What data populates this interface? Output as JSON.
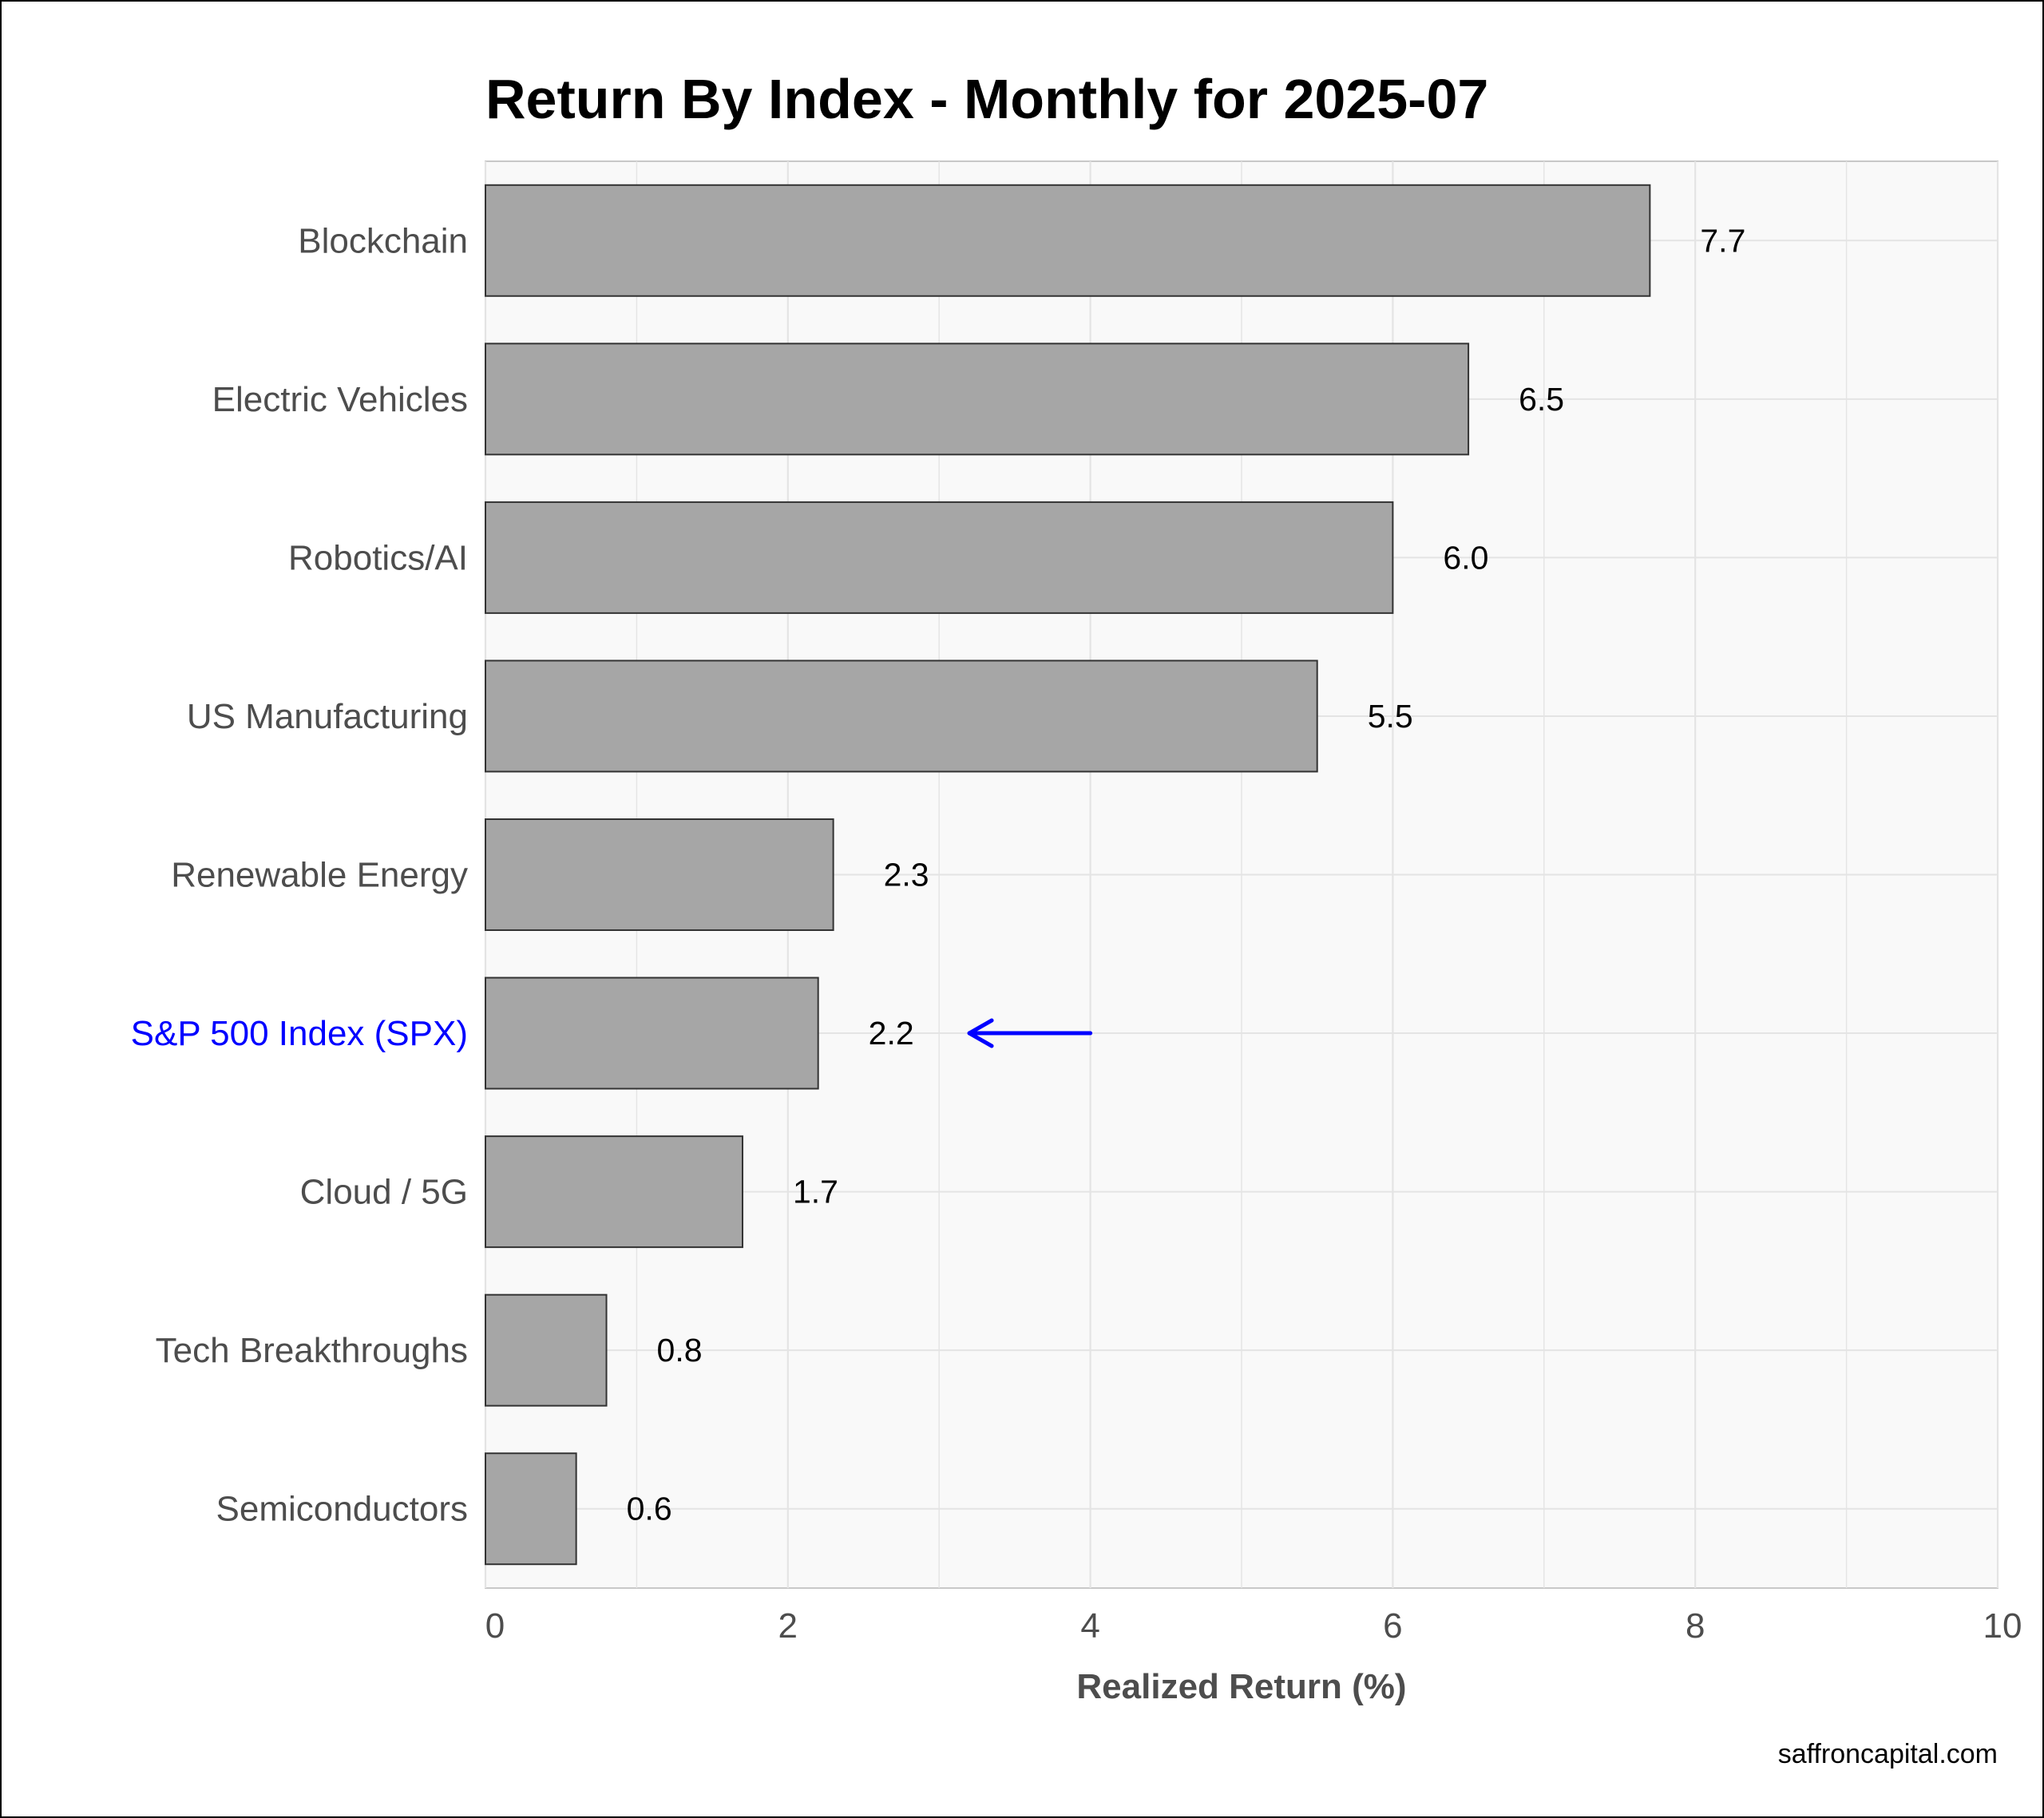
{
  "chart_data": {
    "type": "bar",
    "orientation": "horizontal",
    "title": "Return By Index - Monthly for 2025-07",
    "xlabel": "Realized Return (%)",
    "ylabel": "",
    "xlim": [
      0,
      10
    ],
    "xticks": [
      "0",
      "2",
      "4",
      "6",
      "8",
      "10"
    ],
    "grid": true,
    "categories": [
      "Blockchain",
      "Electric Vehicles",
      "Robotics/AI",
      "US Manufacturing",
      "Renewable Energy",
      "S&P 500 Index (SPX)",
      "Cloud / 5G",
      "Tech Breakthroughs",
      "Semiconductors"
    ],
    "values": [
      7.7,
      6.5,
      6.0,
      5.5,
      2.3,
      2.2,
      1.7,
      0.8,
      0.6
    ],
    "value_labels": [
      "7.7",
      "6.5",
      "6.0",
      "5.5",
      "2.3",
      "2.2",
      "1.7",
      "0.8",
      "0.6"
    ],
    "highlight": {
      "category": "S&P 500 Index (SPX)",
      "arrow_from_x": 4.0,
      "arrow_to_x": 3.2
    },
    "caption": "saffroncapital.com"
  },
  "colors": {
    "bar_fill": "#a6a6a6",
    "bar_stroke": "#333333",
    "panel_bg": "#f9f9f9",
    "grid": "#e4e4e4",
    "highlight": "#0000ff",
    "axis_text": "#4d4d4d"
  }
}
